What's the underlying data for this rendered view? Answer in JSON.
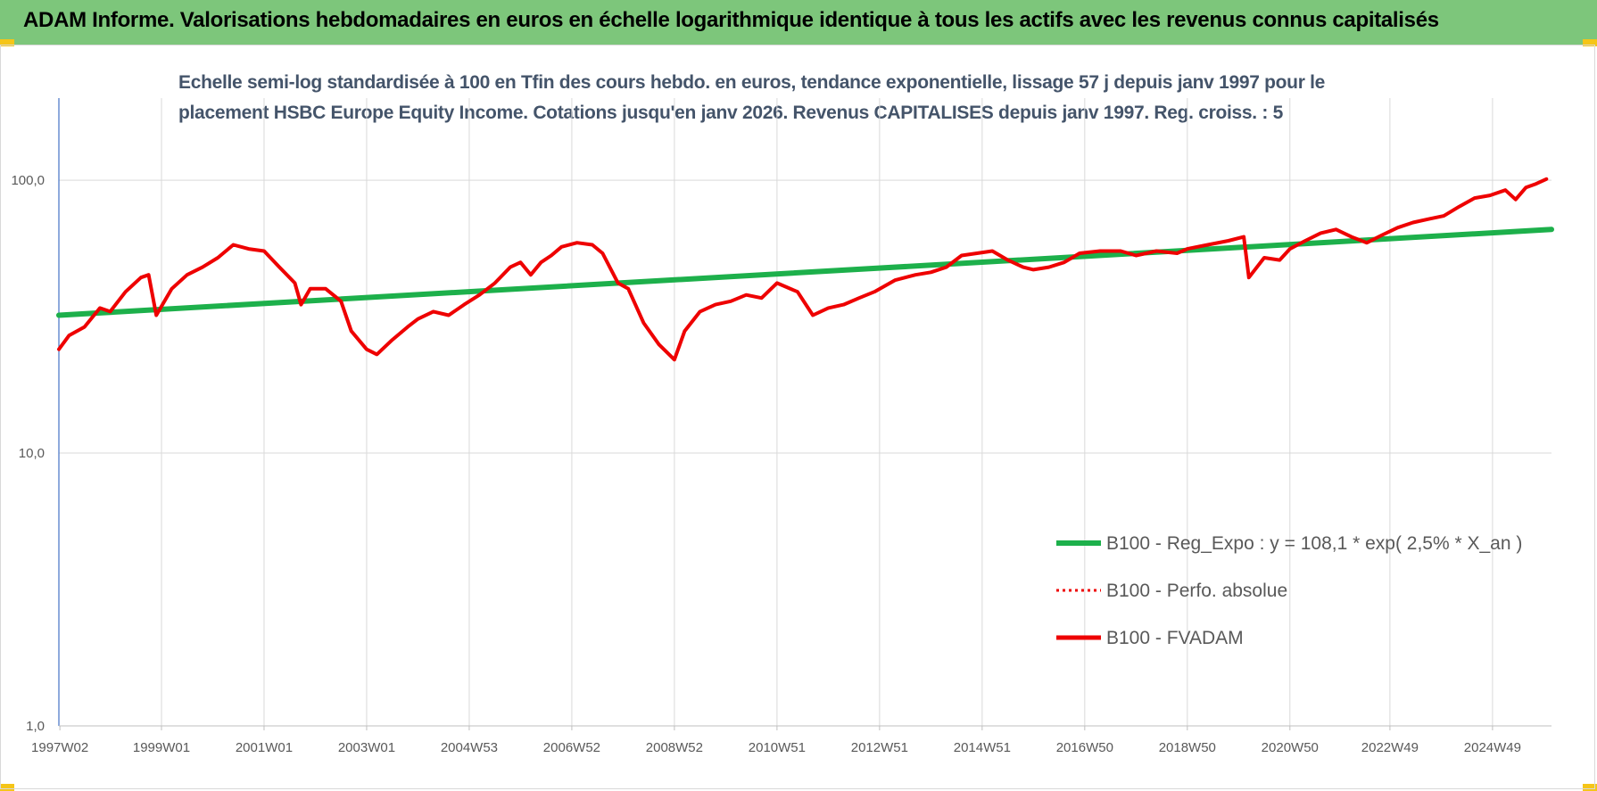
{
  "header": {
    "title": "ADAM Informe. Valorisations hebdomadaires en euros en échelle logarithmique identique à tous les actifs avec les revenus connus capitalisés"
  },
  "chart_data": {
    "type": "line",
    "title_line1": "Echelle semi-log standardisée à 100 en Tfin des cours hebdo. en euros, tendance exponentielle, lissage 57 j depuis janv 1997 pour le",
    "title_line2": "placement HSBC Europe Equity Income. Cotations jusqu'en janv 2026. Revenus CAPITALISES depuis janv 1997. Reg. croiss. : 5",
    "y_scale": "log",
    "ylim": [
      1,
      200
    ],
    "y_ticks": [
      {
        "value": 1,
        "label": "1,0"
      },
      {
        "value": 10,
        "label": "10,0"
      },
      {
        "value": 100,
        "label": "100,0"
      }
    ],
    "xlim": [
      1997.0,
      2026.1
    ],
    "x_ticks": [
      {
        "value": 1997.02,
        "label": "1997W02"
      },
      {
        "value": 1999.0,
        "label": "1999W01"
      },
      {
        "value": 2001.0,
        "label": "2001W01"
      },
      {
        "value": 2003.0,
        "label": "2003W01"
      },
      {
        "value": 2005.0,
        "label": "2004W53"
      },
      {
        "value": 2007.0,
        "label": "2006W52"
      },
      {
        "value": 2009.0,
        "label": "2008W52"
      },
      {
        "value": 2011.0,
        "label": "2010W51"
      },
      {
        "value": 2013.0,
        "label": "2012W51"
      },
      {
        "value": 2015.0,
        "label": "2014W51"
      },
      {
        "value": 2017.0,
        "label": "2016W50"
      },
      {
        "value": 2019.0,
        "label": "2018W50"
      },
      {
        "value": 2021.0,
        "label": "2020W50"
      },
      {
        "value": 2022.95,
        "label": "2022W49"
      },
      {
        "value": 2024.95,
        "label": "2024W49"
      }
    ],
    "grid": true,
    "legend_position": "bottom-right",
    "colors": {
      "trend": "#1db04b",
      "fvadam": "#ee0000",
      "perf": "#ee0000",
      "grid": "#d9d9d9",
      "axis": "#4472c4"
    },
    "series": [
      {
        "name": "B100 - Reg_Expo : y = 108,1 * exp( 2,5% *  X_an )",
        "style": "trend",
        "x": [
          1997.0,
          2026.1
        ],
        "y": [
          32,
          66
        ]
      },
      {
        "name": "B100 - Perfo. absolue",
        "style": "dotted",
        "x": [],
        "y": []
      },
      {
        "name": "B100 - FVADAM",
        "style": "solid",
        "x": [
          1997.0,
          1997.2,
          1997.5,
          1997.8,
          1998.0,
          1998.3,
          1998.6,
          1998.75,
          1998.9,
          1999.2,
          1999.5,
          1999.8,
          2000.1,
          2000.4,
          2000.7,
          2001.0,
          2001.3,
          2001.6,
          2001.72,
          2001.9,
          2002.2,
          2002.5,
          2002.7,
          2003.0,
          2003.2,
          2003.5,
          2003.8,
          2004.0,
          2004.3,
          2004.6,
          2004.9,
          2005.2,
          2005.5,
          2005.8,
          2006.0,
          2006.2,
          2006.4,
          2006.6,
          2006.8,
          2007.1,
          2007.4,
          2007.6,
          2007.9,
          2008.1,
          2008.4,
          2008.7,
          2009.0,
          2009.2,
          2009.5,
          2009.8,
          2010.1,
          2010.4,
          2010.7,
          2011.0,
          2011.4,
          2011.7,
          2012.0,
          2012.3,
          2012.6,
          2012.9,
          2013.3,
          2013.7,
          2014.0,
          2014.3,
          2014.6,
          2014.9,
          2015.2,
          2015.5,
          2015.8,
          2016.0,
          2016.3,
          2016.6,
          2016.9,
          2017.3,
          2017.7,
          2018.0,
          2018.4,
          2018.8,
          2019.0,
          2019.4,
          2019.8,
          2020.1,
          2020.2,
          2020.5,
          2020.8,
          2021.0,
          2021.3,
          2021.6,
          2021.9,
          2022.2,
          2022.5,
          2022.8,
          2023.1,
          2023.4,
          2023.7,
          2024.0,
          2024.3,
          2024.6,
          2024.9,
          2025.2,
          2025.4,
          2025.6,
          2025.8,
          2026.0
        ],
        "y": [
          24,
          27,
          29,
          34,
          33,
          39,
          44,
          45,
          32,
          40,
          45,
          48,
          52,
          58,
          56,
          55,
          48,
          42,
          35,
          40,
          40,
          36,
          28,
          24,
          23,
          26,
          29,
          31,
          33,
          32,
          35,
          38,
          42,
          48,
          50,
          45,
          50,
          53,
          57,
          59,
          58,
          54,
          42,
          40,
          30,
          25,
          22,
          28,
          33,
          35,
          36,
          38,
          37,
          42,
          39,
          32,
          34,
          35,
          37,
          39,
          43,
          45,
          46,
          48,
          53,
          54,
          55,
          51,
          48,
          47,
          48,
          50,
          54,
          55,
          55,
          53,
          55,
          54,
          56,
          58,
          60,
          62,
          44,
          52,
          51,
          56,
          60,
          64,
          66,
          62,
          59,
          63,
          67,
          70,
          72,
          74,
          80,
          86,
          88,
          92,
          85,
          94,
          97,
          101
        ]
      }
    ]
  }
}
